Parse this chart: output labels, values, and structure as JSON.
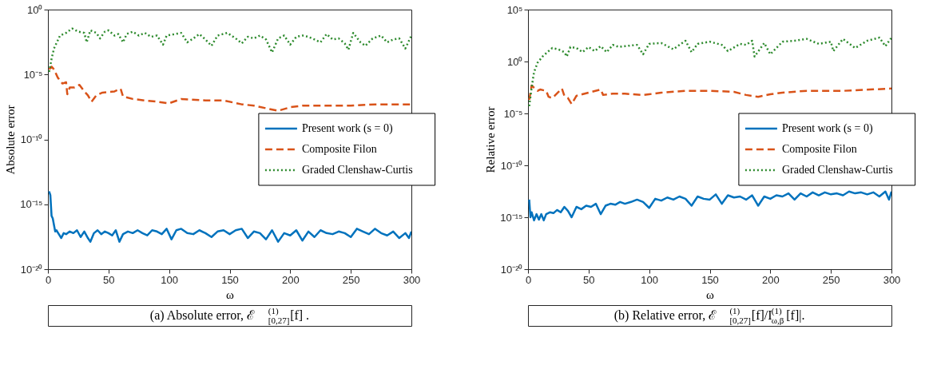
{
  "chart_data": [
    {
      "type": "line",
      "title": "(a) Absolute error, ℰ$^{(1)}$$_{[0,27]}$[f] .",
      "xlabel": "ω",
      "ylabel": "Absolute error",
      "log": "y",
      "grid": false,
      "legend": "right",
      "xlim": [
        0,
        300
      ],
      "xticks": [
        0,
        50,
        100,
        150,
        200,
        250,
        300
      ],
      "ylim": [
        1e-20,
        1
      ],
      "yticks": [
        {
          "value": 1e-20,
          "label": "10⁻²⁰"
        },
        {
          "value": 1e-15,
          "label": "10⁻¹⁵"
        },
        {
          "value": 1e-10,
          "label": "10⁻¹⁰"
        },
        {
          "value": 1e-05,
          "label": "10⁻⁵"
        },
        {
          "value": 1,
          "label": "10⁰"
        }
      ],
      "series": [
        {
          "name": "Present work (s = 0)",
          "color": "#0072bd",
          "line_style": "solid",
          "x": [
            1,
            2,
            3,
            4,
            5,
            6,
            7,
            9,
            11,
            13,
            15,
            18,
            21,
            24,
            27,
            30,
            33,
            35,
            38,
            41,
            44,
            47,
            50,
            53,
            56,
            59,
            62,
            66,
            70,
            74,
            78,
            82,
            86,
            90,
            94,
            98,
            102,
            106,
            110,
            115,
            120,
            125,
            130,
            135,
            140,
            145,
            150,
            155,
            160,
            165,
            170,
            175,
            180,
            185,
            190,
            195,
            200,
            205,
            210,
            215,
            220,
            225,
            230,
            235,
            240,
            245,
            250,
            255,
            260,
            265,
            270,
            275,
            280,
            285,
            290,
            295,
            298,
            300
          ],
          "values": [
            1e-14,
            5e-15,
            1.3e-16,
            8e-17,
            2.5e-17,
            8e-18,
            1e-17,
            5e-18,
            2.5e-18,
            6e-18,
            5e-18,
            8e-18,
            6e-18,
            1e-17,
            3e-18,
            8e-18,
            2.5e-18,
            1.3e-18,
            6e-18,
            1e-17,
            5e-18,
            8e-18,
            6e-18,
            4e-18,
            1e-17,
            1.3e-18,
            5e-18,
            8e-18,
            6e-18,
            1e-17,
            6e-18,
            4e-18,
            1e-17,
            8e-18,
            5e-18,
            1.3e-17,
            2e-18,
            1e-17,
            1.3e-17,
            6e-18,
            5e-18,
            1e-17,
            6e-18,
            3e-18,
            8e-18,
            1e-17,
            5e-18,
            1e-17,
            1.3e-17,
            2.5e-18,
            8e-18,
            6e-18,
            2e-18,
            1e-17,
            1.3e-18,
            6e-18,
            4e-18,
            1e-17,
            1.6e-18,
            8e-18,
            3e-18,
            1e-17,
            6e-18,
            5e-18,
            8e-18,
            6e-18,
            3e-18,
            1.3e-17,
            8e-18,
            5e-18,
            1.3e-17,
            6e-18,
            4e-18,
            8e-18,
            2.5e-18,
            6e-18,
            2.5e-18,
            8e-18
          ]
        },
        {
          "name": "Composite Filon",
          "color": "#d95319",
          "line_style": "dashed",
          "x": [
            1,
            3,
            5,
            8,
            12,
            15,
            16,
            18,
            22,
            26,
            30,
            33,
            36,
            40,
            45,
            55,
            60,
            62,
            70,
            80,
            90,
            100,
            110,
            130,
            145,
            160,
            170,
            180,
            190,
            200,
            210,
            230,
            250,
            270,
            300
          ],
          "values": [
            2.5e-05,
            4e-05,
            2.5e-05,
            6e-06,
            2e-06,
            2.5e-06,
            3e-07,
            1e-06,
            1e-06,
            1.6e-06,
            5e-07,
            2.5e-07,
            8e-08,
            2.5e-07,
            4e-07,
            5e-07,
            8e-07,
            2e-07,
            1.3e-07,
            1e-07,
            8e-08,
            6e-08,
            1.3e-07,
            1e-07,
            1e-07,
            5e-08,
            4e-08,
            2.5e-08,
            1.6e-08,
            3e-08,
            4e-08,
            4e-08,
            4e-08,
            5e-08,
            5e-08
          ]
        },
        {
          "name": "Graded Clenshaw-Curtis",
          "color": "#2e8b2e",
          "line_style": "dotted",
          "x": [
            1,
            3,
            5,
            8,
            10,
            15,
            20,
            25,
            30,
            32,
            35,
            40,
            43,
            47,
            50,
            55,
            58,
            62,
            65,
            70,
            75,
            80,
            85,
            90,
            95,
            98,
            105,
            110,
            115,
            120,
            125,
            130,
            135,
            140,
            148,
            155,
            160,
            165,
            170,
            175,
            180,
            185,
            190,
            195,
            200,
            205,
            210,
            215,
            220,
            225,
            230,
            235,
            240,
            245,
            248,
            252,
            258,
            262,
            268,
            275,
            280,
            285,
            290,
            295,
            300
          ],
          "values": [
            1.6e-05,
            0.00016,
            0.001,
            0.004,
            0.01,
            0.016,
            0.035,
            0.02,
            0.016,
            0.003,
            0.025,
            0.016,
            0.006,
            0.02,
            0.025,
            0.01,
            0.013,
            0.003,
            0.013,
            0.02,
            0.01,
            0.016,
            0.008,
            0.01,
            0.002,
            0.01,
            0.013,
            0.016,
            0.003,
            0.006,
            0.013,
            0.005,
            0.0016,
            0.01,
            0.016,
            0.006,
            0.0025,
            0.008,
            0.006,
            0.01,
            0.005,
            0.0005,
            0.006,
            0.01,
            0.002,
            0.008,
            0.01,
            0.008,
            0.005,
            0.003,
            0.013,
            0.005,
            0.006,
            0.0025,
            0.0008,
            0.016,
            0.003,
            0.0016,
            0.006,
            0.01,
            0.003,
            0.005,
            0.006,
            0.001,
            0.01
          ]
        }
      ]
    },
    {
      "type": "line",
      "title": "(b) Relative error, ℰ$^{(1)}$$_{[0,27]}$[f]/I$^{(1)}$$_{ω,β}$[f]|.",
      "xlabel": "ω",
      "ylabel": "Relative error",
      "log": "y",
      "grid": false,
      "legend": "right",
      "xlim": [
        0,
        300
      ],
      "xticks": [
        0,
        50,
        100,
        150,
        200,
        250,
        300
      ],
      "ylim": [
        1e-20,
        100000
      ],
      "yticks": [
        {
          "value": 1e-20,
          "label": "10⁻²⁰"
        },
        {
          "value": 1e-15,
          "label": "10⁻¹⁵"
        },
        {
          "value": 1e-10,
          "label": "10⁻¹⁰"
        },
        {
          "value": 1e-05,
          "label": "10⁻⁵"
        },
        {
          "value": 1,
          "label": "10⁰"
        },
        {
          "value": 100000,
          "label": "10⁵"
        }
      ],
      "series": [
        {
          "name": "Present work (s = 0)",
          "color": "#0072bd",
          "line_style": "solid",
          "x": [
            1,
            2,
            3,
            5,
            7,
            9,
            11,
            13,
            15,
            18,
            21,
            24,
            27,
            30,
            33,
            36,
            40,
            44,
            48,
            52,
            56,
            60,
            64,
            68,
            72,
            76,
            80,
            85,
            90,
            95,
            100,
            105,
            110,
            115,
            120,
            125,
            130,
            135,
            140,
            145,
            150,
            155,
            160,
            165,
            170,
            175,
            180,
            185,
            190,
            195,
            200,
            205,
            210,
            215,
            220,
            225,
            230,
            235,
            240,
            245,
            250,
            255,
            260,
            265,
            270,
            275,
            280,
            285,
            290,
            295,
            298,
            300
          ],
          "values": [
            5e-14,
            1e-15,
            3e-15,
            5e-16,
            2e-15,
            6e-16,
            2e-15,
            5e-16,
            2e-15,
            3e-15,
            2.5e-15,
            5e-15,
            3e-15,
            1e-14,
            4e-15,
            1e-15,
            1e-14,
            6e-15,
            1.3e-14,
            1e-14,
            2e-14,
            2e-15,
            1.3e-14,
            2e-14,
            1.6e-14,
            3e-14,
            2e-14,
            3e-14,
            5e-14,
            3e-14,
            8e-15,
            6e-14,
            4e-14,
            8e-14,
            5e-14,
            1e-13,
            6e-14,
            1.3e-14,
            1e-13,
            6e-14,
            5e-14,
            1.6e-13,
            2e-14,
            1.3e-13,
            8e-14,
            1e-13,
            5e-14,
            1.3e-13,
            1.3e-14,
            1e-13,
            6e-14,
            1.3e-13,
            1e-13,
            2e-13,
            5e-14,
            2e-13,
            1e-13,
            2.5e-13,
            1.3e-13,
            2.5e-13,
            1.6e-13,
            2e-13,
            1.3e-13,
            3e-13,
            2e-13,
            2.5e-13,
            1.6e-13,
            2.5e-13,
            1e-13,
            3e-13,
            5e-14,
            3e-13
          ]
        },
        {
          "name": "Composite Filon",
          "color": "#d95319",
          "line_style": "dashed",
          "x": [
            1,
            3,
            5,
            8,
            10,
            15,
            17,
            20,
            22,
            28,
            30,
            33,
            36,
            40,
            50,
            60,
            62,
            70,
            80,
            95,
            100,
            110,
            130,
            150,
            170,
            180,
            190,
            200,
            210,
            230,
            260,
            300
          ],
          "values": [
            0.0002,
            0.005,
            0.003,
            0.0015,
            0.002,
            0.0015,
            0.0004,
            0.0003,
            0.0005,
            0.0025,
            0.0005,
            0.0003,
            8e-05,
            0.0005,
            0.001,
            0.002,
            0.0006,
            0.0008,
            0.0008,
            0.0006,
            0.0007,
            0.001,
            0.0015,
            0.0015,
            0.0012,
            0.0006,
            0.0004,
            0.0007,
            0.001,
            0.0015,
            0.0015,
            0.0025
          ]
        },
        {
          "name": "Graded Clenshaw-Curtis",
          "color": "#2e8b2e",
          "line_style": "dotted",
          "x": [
            1,
            3,
            5,
            8,
            12,
            16,
            20,
            25,
            30,
            32,
            35,
            40,
            45,
            50,
            55,
            60,
            65,
            70,
            75,
            80,
            90,
            95,
            100,
            110,
            120,
            125,
            130,
            135,
            140,
            150,
            160,
            165,
            175,
            180,
            185,
            187,
            195,
            200,
            210,
            220,
            230,
            240,
            250,
            252,
            260,
            270,
            280,
            290,
            295,
            300
          ],
          "values": [
            5e-05,
            0.003,
            0.1,
            0.8,
            3,
            8,
            20,
            15,
            8,
            3,
            25,
            20,
            8,
            25,
            10,
            30,
            8,
            40,
            25,
            30,
            40,
            5,
            50,
            60,
            15,
            40,
            100,
            8,
            50,
            80,
            40,
            10,
            50,
            40,
            100,
            3,
            60,
            5,
            80,
            100,
            150,
            50,
            80,
            10,
            150,
            20,
            100,
            200,
            30,
            200
          ]
        }
      ]
    }
  ]
}
